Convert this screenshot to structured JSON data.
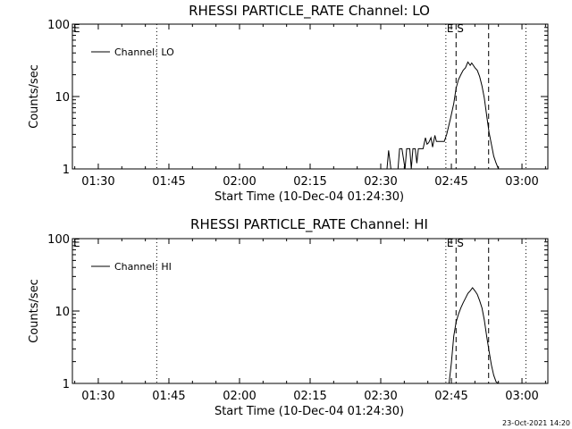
{
  "chart_data": [
    {
      "type": "line",
      "title": "RHESSI PARTICLE_RATE Channel: LO",
      "xlabel": "Start Time (10-Dec-04 01:24:30)",
      "ylabel": "Counts/sec",
      "yscale": "log",
      "ylim": [
        1,
        100
      ],
      "xlim": [
        "01:24:30",
        "03:05:30"
      ],
      "x_ticks": [
        "01:30",
        "01:45",
        "02:00",
        "02:15",
        "02:30",
        "02:45",
        "03:00"
      ],
      "y_ticks": [
        "1",
        "10",
        "100"
      ],
      "grid": false,
      "legend": {
        "position": "top-left",
        "entries": [
          "Channel: LO"
        ]
      },
      "markers": [
        {
          "label": "E",
          "time": "01:24:30",
          "style": "solid"
        },
        {
          "label": "",
          "time": "01:42:25",
          "style": "dotted"
        },
        {
          "label": "E",
          "time": "02:43:50",
          "style": "dotted"
        },
        {
          "label": "S",
          "time": "02:46:00",
          "style": "dashed"
        },
        {
          "label": "",
          "time": "02:52:55",
          "style": "dashed"
        },
        {
          "label": "",
          "time": "03:00:50",
          "style": "dotted"
        }
      ],
      "series": [
        {
          "x": [
            "02:31:20",
            "02:31:40",
            "02:32:10",
            "02:33:40",
            "02:34:00",
            "02:34:30",
            "02:35:10",
            "02:35:30",
            "02:35:50",
            "02:36:10",
            "02:36:30",
            "02:36:50",
            "02:37:20",
            "02:37:40",
            "02:38:00",
            "02:38:40",
            "02:39:00",
            "02:39:30",
            "02:39:50",
            "02:40:10",
            "02:40:40",
            "02:41:00",
            "02:41:30",
            "02:41:50",
            "02:42:10",
            "02:42:30",
            "02:43:00",
            "02:43:30",
            "02:44:00",
            "02:44:50",
            "02:45:30",
            "02:46:00",
            "02:46:30",
            "02:47:00",
            "02:47:30",
            "02:48:00",
            "02:48:30",
            "02:49:00",
            "02:49:20",
            "02:49:40",
            "02:50:00",
            "02:50:30",
            "02:51:00",
            "02:51:30",
            "02:52:00",
            "02:52:30",
            "02:53:00",
            "02:53:30",
            "02:54:00",
            "02:54:30",
            "02:55:00",
            "02:55:30"
          ],
          "y": [
            1,
            1.8,
            1,
            1,
            1.9,
            1.9,
            1,
            1.9,
            1.9,
            1.9,
            1,
            1.9,
            1.9,
            1.2,
            1.9,
            1.9,
            1.9,
            2.7,
            2.2,
            2.3,
            2.7,
            2.0,
            2.9,
            2.4,
            2.4,
            2.4,
            2.4,
            2.4,
            3.0,
            5.0,
            8.0,
            13.0,
            17.0,
            20.0,
            23.0,
            25.0,
            30.0,
            27.0,
            29.0,
            27.0,
            25.0,
            23.0,
            19.0,
            14.0,
            9.5,
            5.5,
            3.2,
            2.2,
            1.5,
            1.2,
            1.0,
            1.0
          ]
        }
      ]
    },
    {
      "type": "line",
      "title": "RHESSI PARTICLE_RATE Channel: HI",
      "xlabel": "Start Time (10-Dec-04 01:24:30)",
      "ylabel": "Counts/sec",
      "yscale": "log",
      "ylim": [
        1,
        100
      ],
      "xlim": [
        "01:24:30",
        "03:05:30"
      ],
      "x_ticks": [
        "01:30",
        "01:45",
        "02:00",
        "02:15",
        "02:30",
        "02:45",
        "03:00"
      ],
      "y_ticks": [
        "1",
        "10",
        "100"
      ],
      "grid": false,
      "legend": {
        "position": "top-left",
        "entries": [
          "Channel: HI"
        ]
      },
      "markers": [
        {
          "label": "E",
          "time": "01:24:30",
          "style": "solid"
        },
        {
          "label": "",
          "time": "01:42:25",
          "style": "dotted"
        },
        {
          "label": "E",
          "time": "02:43:50",
          "style": "dotted"
        },
        {
          "label": "S",
          "time": "02:46:00",
          "style": "dashed"
        },
        {
          "label": "",
          "time": "02:52:55",
          "style": "dashed"
        },
        {
          "label": "",
          "time": "03:00:50",
          "style": "dotted"
        }
      ],
      "series": [
        {
          "x": [
            "02:44:30",
            "02:45:00",
            "02:45:30",
            "02:46:00",
            "02:46:30",
            "02:47:00",
            "02:47:30",
            "02:48:00",
            "02:48:30",
            "02:49:00",
            "02:49:30",
            "02:50:00",
            "02:50:30",
            "02:51:00",
            "02:51:30",
            "02:52:00",
            "02:52:30",
            "02:53:00",
            "02:53:30",
            "02:54:00",
            "02:54:30",
            "02:55:00"
          ],
          "y": [
            1.0,
            1.9,
            4.5,
            7.0,
            9.0,
            11.0,
            13.0,
            15.0,
            17.5,
            19.0,
            21.0,
            19.0,
            17.0,
            14.0,
            11.0,
            7.5,
            4.5,
            2.8,
            1.8,
            1.3,
            1.05,
            1.0
          ]
        }
      ]
    }
  ],
  "footer": {
    "timestamp": "23-Oct-2021 14:20"
  }
}
